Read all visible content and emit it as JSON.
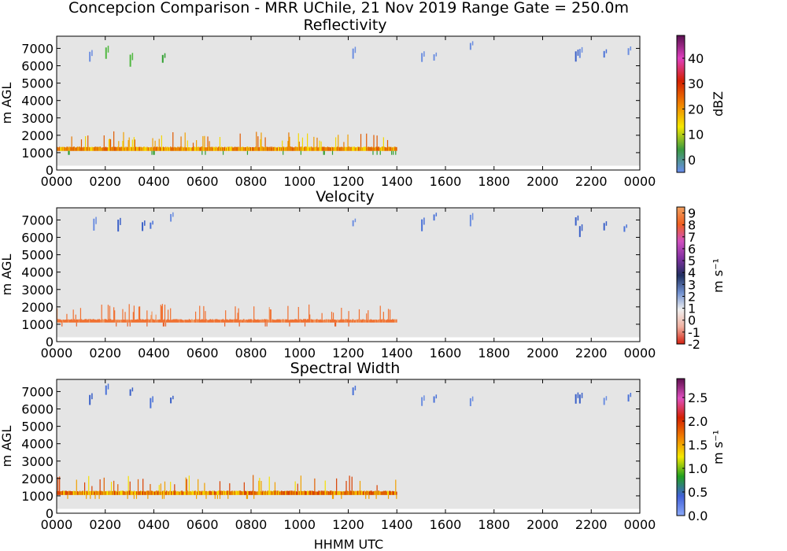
{
  "figure_title": "Concepcion Comparison - MRR UChile, 21 Nov 2019 Range Gate = 250.0m",
  "xlabel": "HHMM UTC",
  "colors": {
    "background": "#e5e5e5",
    "reflectivity_band": [
      "#f5d800",
      "#f0a000",
      "#e67800",
      "#e05a00"
    ],
    "velocity_band": [
      "#f07030",
      "#e86028",
      "#f09860",
      "#a040a0"
    ],
    "width_band": [
      "#f5e000",
      "#f0a000",
      "#e06000",
      "#d84000"
    ],
    "upper_echo": [
      "#4a72d8",
      "#6c8ee0",
      "#3a60c8"
    ],
    "green_echo": [
      "#30a030",
      "#50b840"
    ]
  },
  "chart_data": [
    {
      "type": "heatmap",
      "title": "Reflectivity",
      "xlabel": "",
      "ylabel": "m AGL",
      "xlim": [
        0,
        2400
      ],
      "ylim": [
        0,
        7700
      ],
      "xticks": [
        "0000",
        "0200",
        "0400",
        "0600",
        "0800",
        "1000",
        "1200",
        "1400",
        "1600",
        "1800",
        "2000",
        "2200",
        "0000"
      ],
      "yticks": [
        "0",
        "1000",
        "2000",
        "3000",
        "4000",
        "5000",
        "6000",
        "7000"
      ],
      "colorbar": {
        "label": "dBZ",
        "range": [
          -5,
          49
        ],
        "ticks": [
          "0",
          "10",
          "20",
          "30",
          "40"
        ],
        "tick_values": [
          0,
          10,
          20,
          30,
          40
        ],
        "stops": [
          "#6a8ef0",
          "#3a9a40",
          "#f5e800",
          "#f08000",
          "#d42000",
          "#e040c0",
          "#5a1050"
        ]
      },
      "band": {
        "start_hhmm": 0,
        "end_hhmm": 1400,
        "base_m": 1100,
        "top_m": 1350,
        "value_range": [
          15,
          32
        ]
      },
      "upper_echoes_hhmm": [
        80,
        200,
        300,
        420,
        1170,
        1500,
        1530,
        1700,
        2080,
        2130,
        2230,
        2330
      ]
    },
    {
      "type": "heatmap",
      "title": "Velocity",
      "xlabel": "",
      "ylabel": "m AGL",
      "xlim": [
        0,
        2400
      ],
      "ylim": [
        0,
        7700
      ],
      "xticks": [
        "0000",
        "0200",
        "0400",
        "0600",
        "0800",
        "1000",
        "1200",
        "1400",
        "1600",
        "1800",
        "2000",
        "2200",
        "0000"
      ],
      "yticks": [
        "0",
        "1000",
        "2000",
        "3000",
        "4000",
        "5000",
        "6000",
        "7000"
      ],
      "colorbar": {
        "label": "m s⁻¹",
        "range": [
          -2,
          9.5
        ],
        "ticks": [
          "-2",
          "-1",
          "0",
          "1",
          "2",
          "3",
          "4",
          "5",
          "6",
          "7",
          "8",
          "9"
        ],
        "tick_values": [
          -2,
          -1,
          0,
          1,
          2,
          3,
          4,
          5,
          6,
          7,
          8,
          9
        ],
        "stops": [
          "#d42010",
          "#f0b0a0",
          "#f0f0f0",
          "#7090d0",
          "#203060",
          "#8030a0",
          "#d050c0",
          "#f06020",
          "#f0a060"
        ]
      },
      "band": {
        "start_hhmm": 0,
        "end_hhmm": 1400,
        "base_m": 1100,
        "top_m": 1300
      },
      "upper_echoes_hhmm": [
        130,
        230,
        290,
        350,
        440,
        1170,
        1500,
        1530,
        1700,
        2080,
        2130,
        2230,
        2320
      ]
    },
    {
      "type": "heatmap",
      "title": "Spectral Width",
      "xlabel": "HHMM UTC",
      "ylabel": "m AGL",
      "xlim": [
        0,
        2400
      ],
      "ylim": [
        0,
        7700
      ],
      "xticks": [
        "0000",
        "0200",
        "0400",
        "0600",
        "0800",
        "1000",
        "1200",
        "1400",
        "1600",
        "1800",
        "2000",
        "2200",
        "0000"
      ],
      "yticks": [
        "0",
        "1000",
        "2000",
        "3000",
        "4000",
        "5000",
        "6000",
        "7000"
      ],
      "colorbar": {
        "label": "m s⁻¹",
        "range": [
          0,
          2.9
        ],
        "ticks": [
          "0.0",
          "0.5",
          "1.0",
          "1.5",
          "2.0",
          "2.5"
        ],
        "tick_values": [
          0,
          0.5,
          1.0,
          1.5,
          2.0,
          2.5
        ],
        "stops": [
          "#8aa8f8",
          "#4060d8",
          "#20a020",
          "#f5e800",
          "#f08000",
          "#d42000",
          "#e050c0",
          "#601050"
        ]
      },
      "band": {
        "start_hhmm": 0,
        "end_hhmm": 1400,
        "base_m": 1050,
        "top_m": 1300,
        "value_range": [
          0.8,
          2.0
        ]
      },
      "upper_echoes_hhmm": [
        80,
        200,
        300,
        350,
        440,
        1170,
        1500,
        1530,
        1700,
        2080,
        2130,
        2230,
        2330
      ]
    }
  ]
}
